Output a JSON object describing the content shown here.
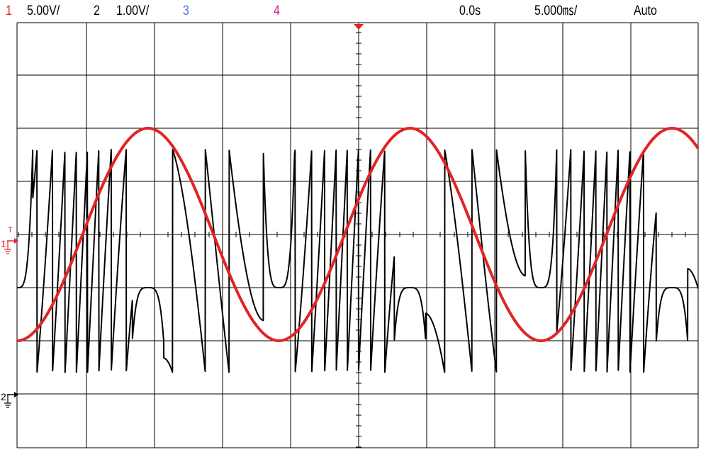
{
  "status_bar": {
    "ch1_number": "1",
    "ch1_scale": "5.00V/",
    "ch2_number": "2",
    "ch2_scale": "1.00V/",
    "ch3_number": "3",
    "ch4_number": "4",
    "time_delay": "0.0s",
    "time_scale": "5.000㎳/",
    "trigger_mode": "Auto"
  },
  "markers": {
    "ch1_ground_label": "1",
    "ch2_ground_label": "2",
    "trigger_level_label": "T"
  },
  "colors": {
    "ch1": "#e02424",
    "ch2": "#000000",
    "ch3": "#4a6ee0",
    "ch4": "#e0148c",
    "trigger_marker": "#e02424",
    "grid": "#000000",
    "background": "#ffffff"
  },
  "chart_data": {
    "type": "line",
    "x_unit": "div",
    "xlim": [
      -5,
      5
    ],
    "ylim": [
      -4,
      4
    ],
    "grid": true,
    "series": [
      {
        "channel": "1",
        "waveform": "sine",
        "volts_per_div": "5.00V/",
        "amplitude_div": 2.0,
        "offset_div": 0.0,
        "cycles_on_screen": 2.6,
        "phase_deg": -90
      },
      {
        "channel": "2",
        "waveform": "chirp-folded",
        "volts_per_div": "1.00V/",
        "high_div": 1.6,
        "low_div": -2.6,
        "dip_div": -1.0,
        "peak_div": -1.0
      }
    ]
  }
}
